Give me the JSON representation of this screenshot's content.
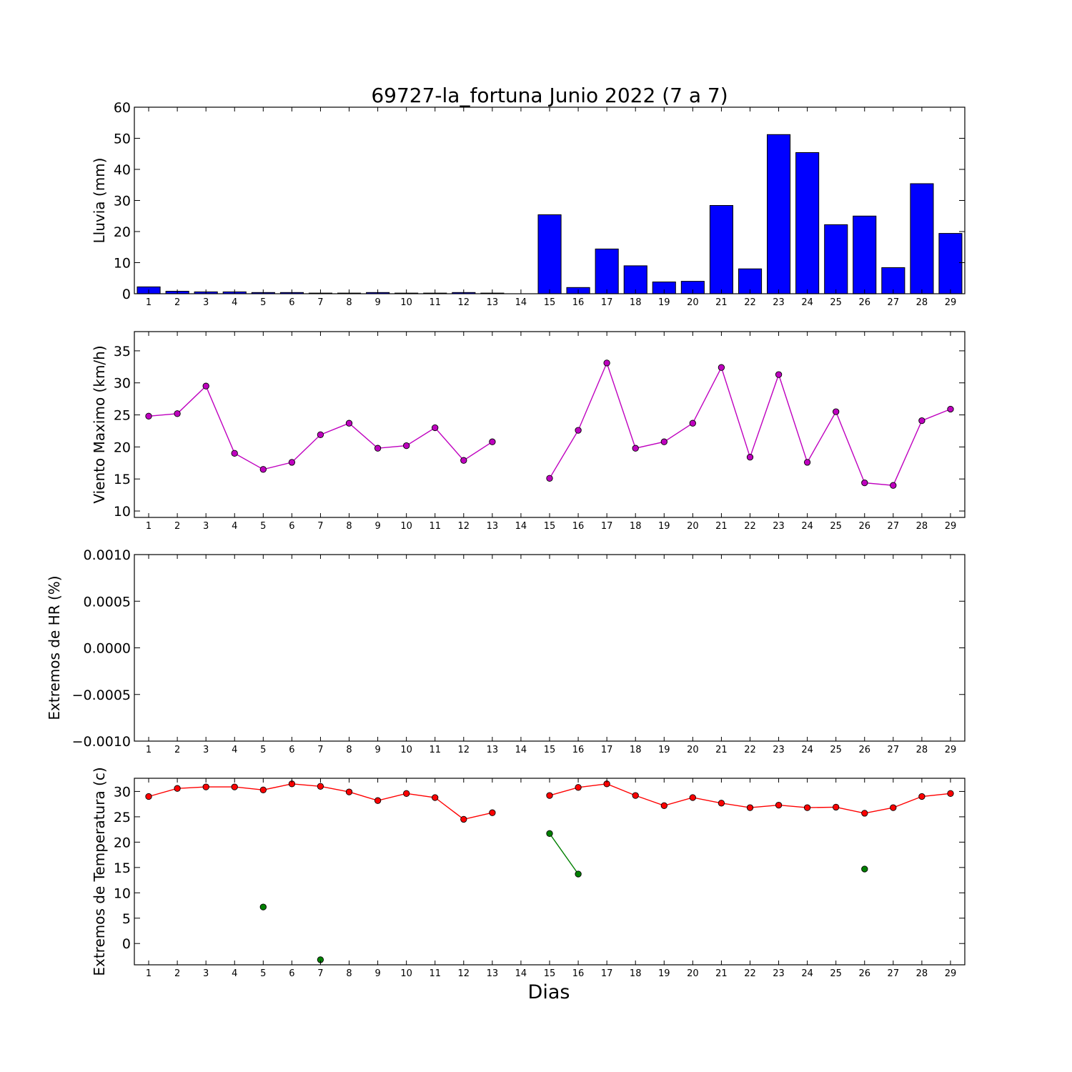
{
  "figure_title": "69727-la_fortuna Junio 2022  (7 a 7)",
  "xlabel": "Dias",
  "colors": {
    "rain_bar": "#0000ff",
    "wind": "#bf00bf",
    "temp_max": "#ff0000",
    "temp_min": "#008000"
  },
  "chart_data": [
    {
      "type": "bar",
      "ylabel": "Lluvia (mm)",
      "ylim": [
        0,
        60
      ],
      "yticks": [
        0,
        10,
        20,
        30,
        40,
        50,
        60
      ],
      "ytick_labels": [
        "0",
        "10",
        "20",
        "30",
        "40",
        "50",
        "60"
      ],
      "categories": [
        "1",
        "2",
        "3",
        "4",
        "5",
        "6",
        "7",
        "8",
        "9",
        "10",
        "11",
        "12",
        "13",
        "14",
        "15",
        "16",
        "17",
        "18",
        "19",
        "20",
        "21",
        "22",
        "23",
        "24",
        "25",
        "26",
        "27",
        "28",
        "29"
      ],
      "values": [
        2.2,
        0.8,
        0.6,
        0.6,
        0.4,
        0.4,
        0.2,
        0.2,
        0.4,
        0.2,
        0.2,
        0.4,
        0.2,
        0,
        25.4,
        2.0,
        14.4,
        9.0,
        3.8,
        4.0,
        28.4,
        8.0,
        51.2,
        45.4,
        22.2,
        25.0,
        8.4,
        35.4,
        19.4
      ]
    },
    {
      "type": "line",
      "ylabel": "Viento Maximo (km/h)",
      "ylim": [
        9,
        38
      ],
      "yticks": [
        10,
        15,
        20,
        25,
        30,
        35
      ],
      "ytick_labels": [
        "10",
        "15",
        "20",
        "25",
        "30",
        "35"
      ],
      "categories": [
        "1",
        "2",
        "3",
        "4",
        "5",
        "6",
        "7",
        "8",
        "9",
        "10",
        "11",
        "12",
        "13",
        "14",
        "15",
        "16",
        "17",
        "18",
        "19",
        "20",
        "21",
        "22",
        "23",
        "24",
        "25",
        "26",
        "27",
        "28",
        "29"
      ],
      "values": [
        24.8,
        25.2,
        29.5,
        19.0,
        16.5,
        17.6,
        21.9,
        23.7,
        19.8,
        20.2,
        23.0,
        17.9,
        20.8,
        null,
        15.1,
        22.6,
        33.1,
        19.8,
        20.8,
        23.7,
        32.4,
        18.4,
        31.3,
        17.6,
        25.5,
        14.4,
        14.0,
        24.1,
        25.9
      ]
    },
    {
      "type": "line",
      "ylabel": "Extremos de HR (%)",
      "ylim": [
        -0.001,
        0.001
      ],
      "yticks": [
        -0.001,
        -0.0005,
        0,
        0.0005,
        0.001
      ],
      "ytick_labels": [
        "−0.0010",
        "−0.0005",
        "0.0000",
        "0.0005",
        "0.0010"
      ],
      "categories": [
        "1",
        "2",
        "3",
        "4",
        "5",
        "6",
        "7",
        "8",
        "9",
        "10",
        "11",
        "12",
        "13",
        "14",
        "15",
        "16",
        "17",
        "18",
        "19",
        "20",
        "21",
        "22",
        "23",
        "24",
        "25",
        "26",
        "27",
        "28",
        "29"
      ],
      "series": []
    },
    {
      "type": "line",
      "ylabel": "Extremos de Temperatura (c)",
      "ylim": [
        -4.2,
        32.6
      ],
      "yticks": [
        0,
        5,
        10,
        15,
        20,
        25,
        30
      ],
      "ytick_labels": [
        "0",
        "5",
        "10",
        "15",
        "20",
        "25",
        "30"
      ],
      "categories": [
        "1",
        "2",
        "3",
        "4",
        "5",
        "6",
        "7",
        "8",
        "9",
        "10",
        "11",
        "12",
        "13",
        "14",
        "15",
        "16",
        "17",
        "18",
        "19",
        "20",
        "21",
        "22",
        "23",
        "24",
        "25",
        "26",
        "27",
        "28",
        "29"
      ],
      "series": [
        {
          "values": [
            29.0,
            30.6,
            30.9,
            30.9,
            30.3,
            31.5,
            31.0,
            29.9,
            28.2,
            29.6,
            28.8,
            24.5,
            25.8,
            null,
            29.2,
            30.8,
            31.5,
            29.2,
            27.2,
            28.8,
            27.7,
            26.8,
            27.3,
            26.8,
            26.9,
            25.7,
            26.8,
            29.0,
            29.6
          ]
        },
        {
          "values": [
            null,
            null,
            null,
            null,
            7.2,
            null,
            -3.2,
            null,
            null,
            null,
            null,
            null,
            null,
            null,
            21.7,
            13.7,
            null,
            null,
            null,
            null,
            null,
            null,
            null,
            null,
            null,
            14.7,
            null,
            null,
            null
          ]
        }
      ]
    }
  ]
}
